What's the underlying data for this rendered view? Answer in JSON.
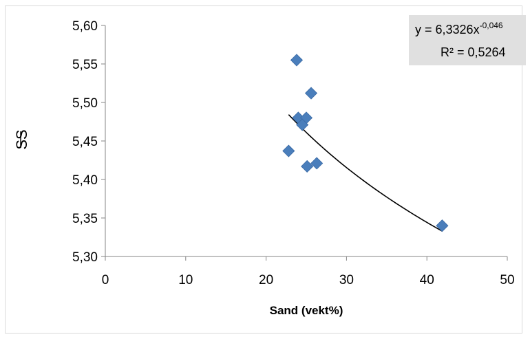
{
  "chart_data": {
    "type": "scatter",
    "title": "",
    "xlabel": "Sand (vekt%)",
    "ylabel": "SS",
    "xlim": [
      0,
      50
    ],
    "ylim": [
      5.3,
      5.6
    ],
    "x_ticks": [
      "0",
      "10",
      "20",
      "30",
      "40",
      "50"
    ],
    "y_ticks": [
      "5,30",
      "5,35",
      "5,40",
      "5,45",
      "5,50",
      "5,55",
      "5,60"
    ],
    "grid": false,
    "legend": "none",
    "marker_color": "#4a7ebb",
    "trendline_color": "#000000",
    "series": [
      {
        "points": [
          {
            "x": 23.8,
            "y": 5.555
          },
          {
            "x": 25.6,
            "y": 5.512
          },
          {
            "x": 24.0,
            "y": 5.48
          },
          {
            "x": 25.0,
            "y": 5.48
          },
          {
            "x": 24.5,
            "y": 5.471
          },
          {
            "x": 22.8,
            "y": 5.437
          },
          {
            "x": 26.3,
            "y": 5.421
          },
          {
            "x": 25.1,
            "y": 5.417
          },
          {
            "x": 41.9,
            "y": 5.34
          }
        ]
      }
    ],
    "trendline": {
      "type": "power",
      "a": 6.3326,
      "b": -0.046,
      "x_range": [
        22.8,
        41.9
      ],
      "equation_base": "y = 6,3326x",
      "equation_exponent": "-0,046",
      "r_squared": "R² = 0,5264"
    }
  }
}
